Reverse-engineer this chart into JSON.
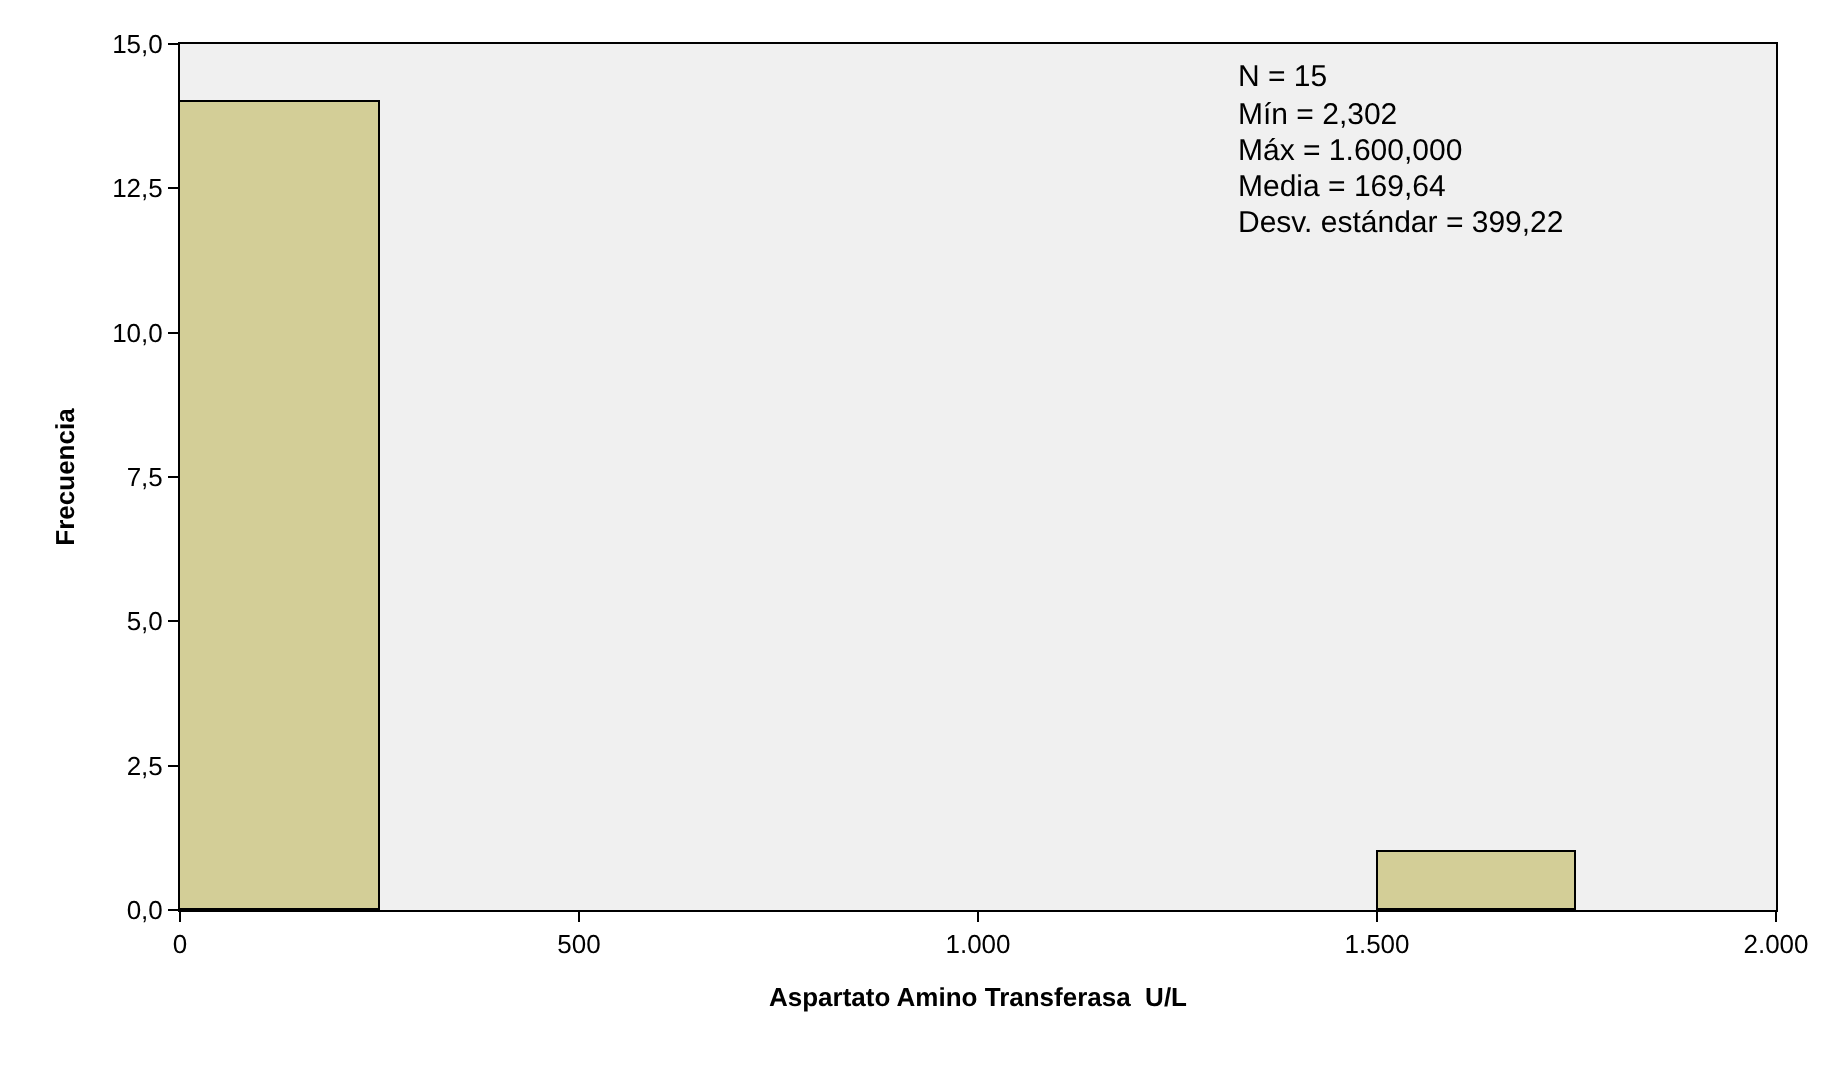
{
  "chart_data": {
    "type": "histogram",
    "xlabel": "Aspartato Amino Transferasa  U/L",
    "ylabel": "Frecuencia",
    "bins": [
      0,
      250,
      500,
      750,
      1000,
      1250,
      1500,
      1750,
      2000
    ],
    "values": [
      14,
      0,
      0,
      0,
      0,
      0,
      1,
      0
    ],
    "color": "#d3ce97",
    "xlim": [
      0,
      2000
    ],
    "xticks": [
      0,
      500,
      {
        "value": 1000,
        "label": "1.000"
      },
      {
        "value": 1500,
        "label": "1.500"
      },
      {
        "value": 2000,
        "label": "2.000"
      }
    ],
    "ylim": [
      0,
      15
    ],
    "yticks": [
      {
        "value": 0,
        "label": "0,0"
      },
      {
        "value": 2.5,
        "label": "2,5"
      },
      {
        "value": 5,
        "label": "5,0"
      },
      {
        "value": 7.5,
        "label": "7,5"
      },
      {
        "value": 10,
        "label": "10,0"
      },
      {
        "value": 12.5,
        "label": "12,5"
      },
      {
        "value": 15,
        "label": "15,0"
      }
    ],
    "grid": false,
    "annotations": [
      "N = 15",
      "Mín = 2,302",
      "Máx = 1.600,000",
      "Media = 169,64",
      "Desv. estándar = 399,22"
    ]
  }
}
